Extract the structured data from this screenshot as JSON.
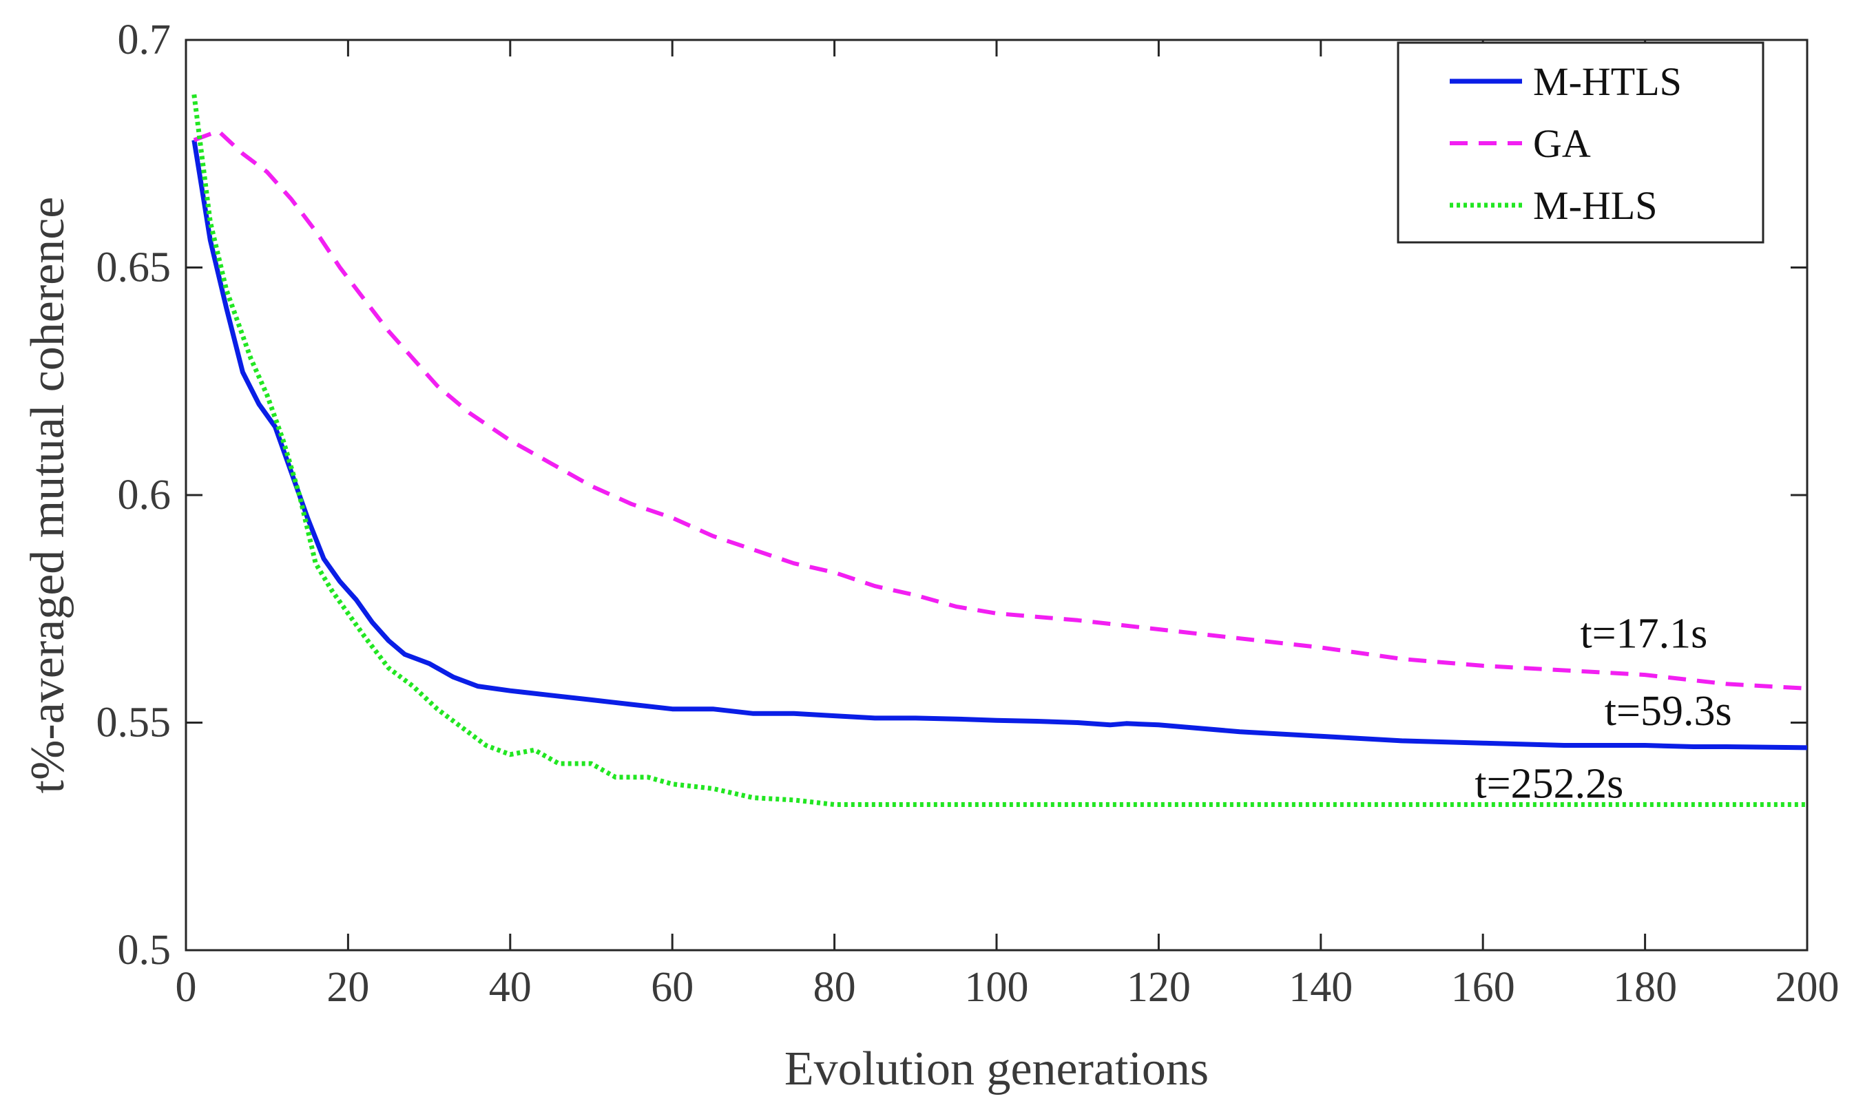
{
  "chart_data": {
    "type": "line",
    "title": "",
    "xlabel": "Evolution generations",
    "ylabel": "t%-averaged mutual coherence",
    "xlim": [
      0,
      200
    ],
    "ylim": [
      0.5,
      0.7
    ],
    "xticks": [
      0,
      20,
      40,
      60,
      80,
      100,
      120,
      140,
      160,
      180,
      200
    ],
    "xtick_labels": [
      "0",
      "20",
      "40",
      "60",
      "80",
      "100",
      "120",
      "140",
      "160",
      "180",
      "200"
    ],
    "yticks": [
      0.5,
      0.55,
      0.6,
      0.65,
      0.7
    ],
    "ytick_labels": [
      "0.5",
      "0.55",
      "0.6",
      "0.65",
      "0.7"
    ],
    "grid": false,
    "legend_position": "top-right",
    "series": [
      {
        "name": "M-HTLS",
        "color": "#0a1ee6",
        "style": "solid",
        "points": [
          [
            1,
            0.678
          ],
          [
            3,
            0.656
          ],
          [
            5,
            0.641
          ],
          [
            7,
            0.627
          ],
          [
            9,
            0.62
          ],
          [
            11,
            0.615
          ],
          [
            13,
            0.605
          ],
          [
            15,
            0.595
          ],
          [
            17,
            0.586
          ],
          [
            19,
            0.581
          ],
          [
            21,
            0.577
          ],
          [
            23,
            0.572
          ],
          [
            25,
            0.568
          ],
          [
            27,
            0.565
          ],
          [
            30,
            0.563
          ],
          [
            33,
            0.56
          ],
          [
            36,
            0.558
          ],
          [
            40,
            0.557
          ],
          [
            45,
            0.556
          ],
          [
            50,
            0.555
          ],
          [
            55,
            0.554
          ],
          [
            60,
            0.553
          ],
          [
            65,
            0.553
          ],
          [
            70,
            0.552
          ],
          [
            75,
            0.552
          ],
          [
            80,
            0.5515
          ],
          [
            85,
            0.551
          ],
          [
            90,
            0.551
          ],
          [
            95,
            0.5508
          ],
          [
            100,
            0.5505
          ],
          [
            105,
            0.5503
          ],
          [
            110,
            0.55
          ],
          [
            114,
            0.5495
          ],
          [
            116,
            0.5498
          ],
          [
            120,
            0.5495
          ],
          [
            130,
            0.548
          ],
          [
            140,
            0.547
          ],
          [
            150,
            0.546
          ],
          [
            160,
            0.5455
          ],
          [
            170,
            0.545
          ],
          [
            180,
            0.545
          ],
          [
            186,
            0.5447
          ],
          [
            190,
            0.5447
          ],
          [
            200,
            0.5445
          ]
        ]
      },
      {
        "name": "GA",
        "color": "#f21ff2",
        "style": "dashed",
        "points": [
          [
            1,
            0.678
          ],
          [
            4,
            0.68
          ],
          [
            7,
            0.675
          ],
          [
            10,
            0.671
          ],
          [
            13,
            0.665
          ],
          [
            16,
            0.658
          ],
          [
            19,
            0.65
          ],
          [
            22,
            0.643
          ],
          [
            25,
            0.636
          ],
          [
            28,
            0.63
          ],
          [
            31,
            0.624
          ],
          [
            35,
            0.618
          ],
          [
            40,
            0.612
          ],
          [
            45,
            0.607
          ],
          [
            50,
            0.602
          ],
          [
            55,
            0.598
          ],
          [
            60,
            0.595
          ],
          [
            65,
            0.591
          ],
          [
            70,
            0.588
          ],
          [
            75,
            0.585
          ],
          [
            80,
            0.583
          ],
          [
            85,
            0.58
          ],
          [
            90,
            0.578
          ],
          [
            95,
            0.5755
          ],
          [
            100,
            0.574
          ],
          [
            110,
            0.5725
          ],
          [
            120,
            0.5705
          ],
          [
            130,
            0.5685
          ],
          [
            140,
            0.5665
          ],
          [
            150,
            0.564
          ],
          [
            160,
            0.5625
          ],
          [
            170,
            0.5615
          ],
          [
            180,
            0.5605
          ],
          [
            190,
            0.5585
          ],
          [
            200,
            0.5575
          ]
        ]
      },
      {
        "name": "M-HLS",
        "color": "#22e622",
        "style": "dotted",
        "points": [
          [
            1,
            0.688
          ],
          [
            3,
            0.66
          ],
          [
            5,
            0.645
          ],
          [
            8,
            0.63
          ],
          [
            10,
            0.622
          ],
          [
            12,
            0.612
          ],
          [
            14,
            0.6
          ],
          [
            16,
            0.585
          ],
          [
            18,
            0.579
          ],
          [
            20,
            0.574
          ],
          [
            22,
            0.569
          ],
          [
            25,
            0.562
          ],
          [
            28,
            0.558
          ],
          [
            31,
            0.553
          ],
          [
            34,
            0.549
          ],
          [
            37,
            0.545
          ],
          [
            40,
            0.543
          ],
          [
            43,
            0.544
          ],
          [
            46,
            0.541
          ],
          [
            50,
            0.541
          ],
          [
            53,
            0.538
          ],
          [
            57,
            0.538
          ],
          [
            60,
            0.5365
          ],
          [
            65,
            0.5355
          ],
          [
            70,
            0.5335
          ],
          [
            75,
            0.533
          ],
          [
            80,
            0.532
          ],
          [
            90,
            0.532
          ],
          [
            100,
            0.532
          ],
          [
            120,
            0.532
          ],
          [
            140,
            0.532
          ],
          [
            160,
            0.532
          ],
          [
            180,
            0.532
          ],
          [
            200,
            0.532
          ]
        ]
      }
    ],
    "annotations": [
      {
        "text": "t=17.1s",
        "x": 172,
        "y": 0.5665
      },
      {
        "text": "t=59.3s",
        "x": 175,
        "y": 0.5495
      },
      {
        "text": "t=252.2s",
        "x": 159,
        "y": 0.5335
      }
    ]
  }
}
